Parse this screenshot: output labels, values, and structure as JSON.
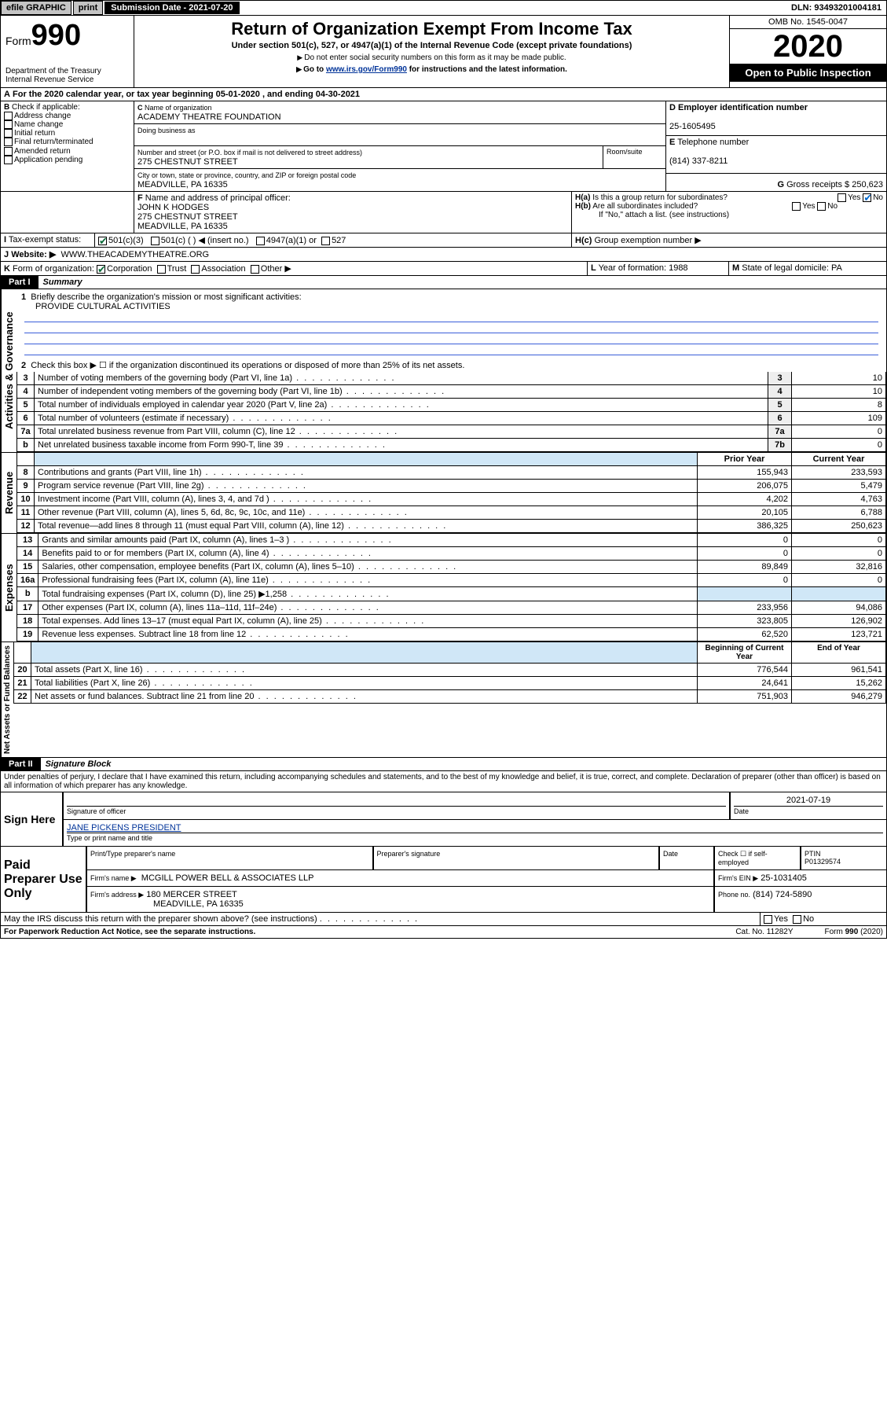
{
  "topbar": {
    "efile": "efile GRAPHIC",
    "print": "print",
    "subdate_label": "Submission Date - 2021-07-20",
    "dln": "DLN: 93493201004181"
  },
  "header": {
    "form_prefix": "Form",
    "form_number": "990",
    "dept": "Department of the Treasury",
    "irs": "Internal Revenue Service",
    "title": "Return of Organization Exempt From Income Tax",
    "subtitle": "Under section 501(c), 527, or 4947(a)(1) of the Internal Revenue Code (except private foundations)",
    "note1": "Do not enter social security numbers on this form as it may be made public.",
    "note2_pre": "Go to ",
    "note2_link": "www.irs.gov/Form990",
    "note2_post": " for instructions and the latest information.",
    "omb": "OMB No. 1545-0047",
    "year": "2020",
    "open": "Open to Public Inspection"
  },
  "periodA": "For the 2020 calendar year, or tax year beginning 05-01-2020   , and ending 04-30-2021",
  "boxB": {
    "label": "Check if applicable:",
    "items": [
      "Address change",
      "Name change",
      "Initial return",
      "Final return/terminated",
      "Amended return",
      "Application pending"
    ]
  },
  "boxC": {
    "name_label": "Name of organization",
    "name": "ACADEMY THEATRE FOUNDATION",
    "dba_label": "Doing business as",
    "addr_label": "Number and street (or P.O. box if mail is not delivered to street address)",
    "room_label": "Room/suite",
    "addr": "275 CHESTNUT STREET",
    "city_label": "City or town, state or province, country, and ZIP or foreign postal code",
    "city": "MEADVILLE, PA  16335"
  },
  "boxD": {
    "label": "Employer identification number",
    "value": "25-1605495"
  },
  "boxE": {
    "label": "Telephone number",
    "value": "(814) 337-8211"
  },
  "boxG": {
    "label": "Gross receipts $",
    "value": "250,623"
  },
  "boxF": {
    "label": "Name and address of principal officer:",
    "name": "JOHN K HODGES",
    "addr1": "275 CHESTNUT STREET",
    "addr2": "MEADVILLE, PA  16335"
  },
  "boxH": {
    "a": "Is this a group return for subordinates?",
    "a_yes": "Yes",
    "a_no": "No",
    "b": "Are all subordinates included?",
    "b_yes": "Yes",
    "b_no": "No",
    "note": "If \"No,\" attach a list. (see instructions)",
    "c": "Group exemption number ▶"
  },
  "taxexempt": {
    "label": "Tax-exempt status:",
    "c501c3": "501(c)(3)",
    "c501c": "501(c) (  ) ◀ (insert no.)",
    "c4947": "4947(a)(1) or",
    "c527": "527"
  },
  "boxJ": {
    "label": "Website: ▶",
    "value": "WWW.THEACADEMYTHEATRE.ORG"
  },
  "boxK": {
    "label": "Form of organization:",
    "corp": "Corporation",
    "trust": "Trust",
    "assoc": "Association",
    "other": "Other ▶"
  },
  "boxL": {
    "label": "Year of formation:",
    "value": "1988"
  },
  "boxM": {
    "label": "State of legal domicile:",
    "value": "PA"
  },
  "part1": {
    "label": "Part I",
    "title": "Summary"
  },
  "summary": {
    "line1_label": "Briefly describe the organization's mission or most significant activities:",
    "line1_text": "PROVIDE CULTURAL ACTIVITIES",
    "line2": "Check this box ▶ ☐  if the organization discontinued its operations or disposed of more than 25% of its net assets.",
    "lines_ag": [
      {
        "n": "3",
        "txt": "Number of voting members of the governing body (Part VI, line 1a)",
        "box": "3",
        "val": "10"
      },
      {
        "n": "4",
        "txt": "Number of independent voting members of the governing body (Part VI, line 1b)",
        "box": "4",
        "val": "10"
      },
      {
        "n": "5",
        "txt": "Total number of individuals employed in calendar year 2020 (Part V, line 2a)",
        "box": "5",
        "val": "8"
      },
      {
        "n": "6",
        "txt": "Total number of volunteers (estimate if necessary)",
        "box": "6",
        "val": "109"
      },
      {
        "n": "7a",
        "txt": "Total unrelated business revenue from Part VIII, column (C), line 12",
        "box": "7a",
        "val": "0"
      },
      {
        "n": "b",
        "txt": "Net unrelated business taxable income from Form 990-T, line 39",
        "box": "7b",
        "val": "0"
      }
    ],
    "hdr_prior": "Prior Year",
    "hdr_curr": "Current Year",
    "rev": [
      {
        "n": "8",
        "txt": "Contributions and grants (Part VIII, line 1h)",
        "p": "155,943",
        "c": "233,593"
      },
      {
        "n": "9",
        "txt": "Program service revenue (Part VIII, line 2g)",
        "p": "206,075",
        "c": "5,479"
      },
      {
        "n": "10",
        "txt": "Investment income (Part VIII, column (A), lines 3, 4, and 7d )",
        "p": "4,202",
        "c": "4,763"
      },
      {
        "n": "11",
        "txt": "Other revenue (Part VIII, column (A), lines 5, 6d, 8c, 9c, 10c, and 11e)",
        "p": "20,105",
        "c": "6,788"
      },
      {
        "n": "12",
        "txt": "Total revenue—add lines 8 through 11 (must equal Part VIII, column (A), line 12)",
        "p": "386,325",
        "c": "250,623"
      }
    ],
    "exp": [
      {
        "n": "13",
        "txt": "Grants and similar amounts paid (Part IX, column (A), lines 1–3 )",
        "p": "0",
        "c": "0"
      },
      {
        "n": "14",
        "txt": "Benefits paid to or for members (Part IX, column (A), line 4)",
        "p": "0",
        "c": "0"
      },
      {
        "n": "15",
        "txt": "Salaries, other compensation, employee benefits (Part IX, column (A), lines 5–10)",
        "p": "89,849",
        "c": "32,816"
      },
      {
        "n": "16a",
        "txt": "Professional fundraising fees (Part IX, column (A), line 11e)",
        "p": "0",
        "c": "0"
      },
      {
        "n": "b",
        "txt": "Total fundraising expenses (Part IX, column (D), line 25) ▶1,258",
        "p": "",
        "c": "",
        "shade": true
      },
      {
        "n": "17",
        "txt": "Other expenses (Part IX, column (A), lines 11a–11d, 11f–24e)",
        "p": "233,956",
        "c": "94,086"
      },
      {
        "n": "18",
        "txt": "Total expenses. Add lines 13–17 (must equal Part IX, column (A), line 25)",
        "p": "323,805",
        "c": "126,902"
      },
      {
        "n": "19",
        "txt": "Revenue less expenses. Subtract line 18 from line 12",
        "p": "62,520",
        "c": "123,721"
      }
    ],
    "hdr_begin": "Beginning of Current Year",
    "hdr_end": "End of Year",
    "net": [
      {
        "n": "20",
        "txt": "Total assets (Part X, line 16)",
        "p": "776,544",
        "c": "961,541"
      },
      {
        "n": "21",
        "txt": "Total liabilities (Part X, line 26)",
        "p": "24,641",
        "c": "15,262"
      },
      {
        "n": "22",
        "txt": "Net assets or fund balances. Subtract line 21 from line 20",
        "p": "751,903",
        "c": "946,279"
      }
    ],
    "sidelabels": {
      "ag": "Activities & Governance",
      "rev": "Revenue",
      "exp": "Expenses",
      "net": "Net Assets or Fund Balances"
    }
  },
  "part2": {
    "label": "Part II",
    "title": "Signature Block"
  },
  "perjury": "Under penalties of perjury, I declare that I have examined this return, including accompanying schedules and statements, and to the best of my knowledge and belief, it is true, correct, and complete. Declaration of preparer (other than officer) is based on all information of which preparer has any knowledge.",
  "sign": {
    "here": "Sign Here",
    "sig_officer": "Signature of officer",
    "date": "2021-07-19",
    "date_label": "Date",
    "officer_name": "JANE PICKENS PRESIDENT",
    "type_label": "Type or print name and title"
  },
  "paid": {
    "label": "Paid Preparer Use Only",
    "pt_name_label": "Print/Type preparer's name",
    "sig_label": "Preparer's signature",
    "date_label": "Date",
    "check_label": "Check ☐ if self-employed",
    "ptin_label": "PTIN",
    "ptin": "P01329574",
    "firm_name_label": "Firm's name   ▶",
    "firm_name": "MCGILL POWER BELL & ASSOCIATES LLP",
    "firm_ein_label": "Firm's EIN ▶",
    "firm_ein": "25-1031405",
    "firm_addr_label": "Firm's address ▶",
    "firm_addr1": "180 MERCER STREET",
    "firm_addr2": "MEADVILLE, PA  16335",
    "phone_label": "Phone no.",
    "phone": "(814) 724-5890"
  },
  "discuss": {
    "q": "May the IRS discuss this return with the preparer shown above? (see instructions)",
    "yes": "Yes",
    "no": "No"
  },
  "footer": {
    "pra": "For Paperwork Reduction Act Notice, see the separate instructions.",
    "cat": "Cat. No. 11282Y",
    "form": "Form 990 (2020)"
  }
}
